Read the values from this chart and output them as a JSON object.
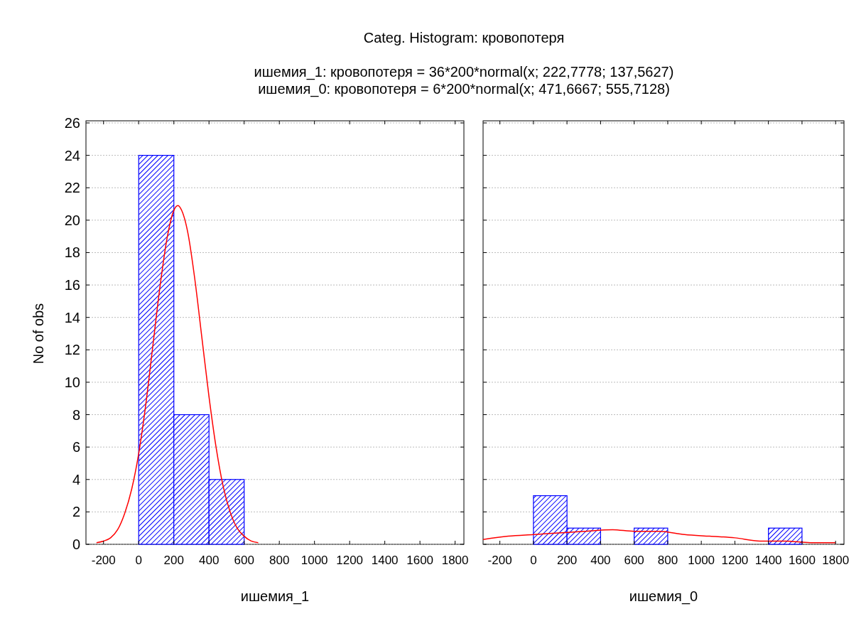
{
  "chart_data": [
    {
      "type": "histogram",
      "title": "Categ. Histogram: кровопотеря",
      "subtitle": "ишемия_1:    кровопотеря = 36*200*normal(x; 222,7778; 137,5627)",
      "xlabel": "ишемия_1",
      "ylabel": "No of obs",
      "xlim": [
        -300,
        1850
      ],
      "xticks": [
        -200,
        0,
        200,
        400,
        600,
        800,
        1000,
        1200,
        1400,
        1600,
        1800
      ],
      "ylim": [
        0,
        26
      ],
      "yticks": [
        0,
        2,
        4,
        6,
        8,
        10,
        12,
        14,
        16,
        18,
        20,
        22,
        24,
        26
      ],
      "grid": "y",
      "series": [
        {
          "type": "histogram",
          "color": "#0000ff",
          "bins": [
            0,
            200,
            400,
            600
          ],
          "values": [
            24,
            8,
            4
          ]
        },
        {
          "type": "line",
          "color": "#ff0000",
          "x": [
            -240,
            -200,
            -160,
            -120,
            -80,
            -40,
            0,
            40,
            80,
            120,
            160,
            200,
            223,
            240,
            280,
            320,
            360,
            400,
            440,
            480,
            520,
            560,
            600,
            640,
            680
          ],
          "values": [
            0.1,
            0.2,
            0.4,
            0.9,
            1.9,
            3.4,
            5.6,
            8.6,
            12.2,
            15.8,
            18.8,
            20.6,
            20.9,
            20.7,
            19.2,
            16.3,
            12.7,
            9.1,
            6.0,
            3.6,
            2.0,
            1.0,
            0.5,
            0.2,
            0.1
          ]
        }
      ]
    },
    {
      "type": "histogram",
      "subtitle": "ишемия_0:    кровопотеря = 6*200*normal(x; 471,6667; 555,7128)",
      "xlabel": "ишемия_0",
      "xlim": [
        -300,
        1850
      ],
      "xticks": [
        -200,
        0,
        200,
        400,
        600,
        800,
        1000,
        1200,
        1400,
        1600,
        1800
      ],
      "ylim": [
        0,
        26
      ],
      "yticks": [
        0,
        2,
        4,
        6,
        8,
        10,
        12,
        14,
        16,
        18,
        20,
        22,
        24,
        26
      ],
      "grid": "y",
      "tick_labels": "x",
      "series": [
        {
          "type": "histogram",
          "color": "#0000ff",
          "bins": [
            0,
            200,
            400,
            600,
            800,
            1000,
            1200,
            1400,
            1600
          ],
          "values": [
            3,
            1,
            0,
            1,
            0,
            0,
            0,
            1
          ]
        },
        {
          "type": "line",
          "color": "#ff0000",
          "x": [
            -300,
            -150,
            0,
            150,
            300,
            472,
            600,
            750,
            900,
            1050,
            1200,
            1350,
            1500,
            1650,
            1800
          ],
          "values": [
            0.3,
            0.5,
            0.6,
            0.7,
            0.8,
            0.9,
            0.8,
            0.8,
            0.6,
            0.5,
            0.4,
            0.2,
            0.2,
            0.1,
            0.1
          ]
        }
      ]
    }
  ]
}
